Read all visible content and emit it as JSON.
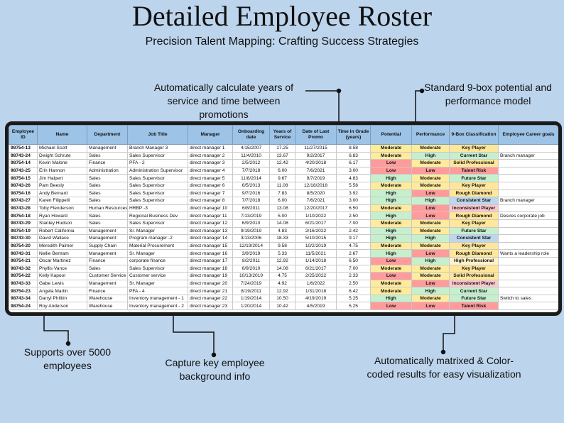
{
  "header": {
    "title": "Detailed Employee Roster",
    "subtitle": "Precision Talent Mapping: Crafting Success Strategies"
  },
  "callouts": [
    "Automatically calculate years of service and time between promotions",
    "Standard 9-box potential and performance model",
    "Supports over 5000 employees",
    "Capture key employee background info",
    "Automatically matrixed & Color-coded results for easy visualization"
  ],
  "table": {
    "headers": [
      "Employee ID",
      "Name",
      "Department",
      "Job Title",
      "Manager",
      "Onboarding date",
      "Years of Service",
      "Date of Last Promo",
      "Time in Grade (years)",
      "Potential",
      "Performance",
      "9-Box Classification",
      "Employee Career goals"
    ],
    "rows": [
      [
        "98754-13",
        "Michael Scott",
        "Management",
        "Branch Manager 3",
        "direct manager 1",
        "4/15/2007",
        17.25,
        "11/27/2015",
        8.58,
        "Moderate",
        "Moderate",
        "Key Player",
        null
      ],
      [
        "98743-24",
        "Dwight Schrute",
        "Sales",
        "Sales Supervisor",
        "direct manager 2",
        "11/4/2010",
        13.67,
        "9/2/2017",
        6.83,
        "Moderate",
        "High",
        "Current Star",
        "Branch manager"
      ],
      [
        "98754-14",
        "Kevin Malone",
        "Finance",
        "PFA - 2",
        "direct manager 3",
        "2/5/2012",
        12.42,
        "4/20/2018",
        6.17,
        "Low",
        "Moderate",
        "Solid Professional",
        null
      ],
      [
        "98743-25",
        "Erin Hannon",
        "Administration",
        "Administration Supervisor",
        "direct manager 4",
        "7/7/2018",
        "6.00",
        "7/6/2021",
        "3.00",
        "Low",
        "Low",
        "Talent Risk",
        null
      ],
      [
        "98754-15",
        "Jim Halpert",
        "Sales",
        "Sales Supervisor",
        "direct manager 5",
        "11/8/2014",
        9.67,
        "9/7/2019",
        4.83,
        "High",
        "Moderate",
        "Future Star",
        null
      ],
      [
        "98743-26",
        "Pam Beesly",
        "Sales",
        "Sales Supervisor",
        "direct manager 6",
        "6/5/2013",
        11.08,
        "12/18/2018",
        5.58,
        "Moderate",
        "Moderate",
        "Key Player",
        null
      ],
      [
        "98754-16",
        "Andy Bernard",
        "Sales",
        "Sales Supervisor",
        "direct manager 7",
        "9/7/2016",
        7.83,
        "8/5/2020",
        3.92,
        "High",
        "Low",
        "Rough Diamond",
        null
      ],
      [
        "98743-27",
        "Karen Filippelli",
        "Sales",
        "Sales Supervisor",
        "direct manager 8",
        "7/7/2018",
        "6.00",
        "7/6/2021",
        "3.00",
        "High",
        "High",
        "Consistent Star",
        "Branch manager"
      ],
      [
        "98743-28",
        "Toby Flenderson",
        "Human Resources",
        "HRBP -3",
        "direct manager 10",
        "6/8/2011",
        13.08,
        "12/20/2017",
        "6.50",
        "Moderate",
        "Low",
        "Inconsistent Player",
        null
      ],
      [
        "98754-18",
        "Ryan Howard",
        "Sales",
        "Regional Business Dev",
        "direct manager 11",
        "7/13/2019",
        "5.00",
        "1/10/2022",
        "2.50",
        "High",
        "Low",
        "Rough Diamond",
        "Desires corporate job"
      ],
      [
        "98743-29",
        "Stanley Hudson",
        "Sales",
        "Sales Supervisor",
        "direct manager 12",
        "6/9/2010",
        14.08,
        "6/21/2017",
        "7.00",
        "Moderate",
        "Moderate",
        "Key Player",
        null
      ],
      [
        "98754-19",
        "Robert California",
        "Management",
        "Sr. Manager",
        "direct manager 13",
        "9/19/2019",
        4.83,
        "2/16/2022",
        2.42,
        "High",
        "Moderate",
        "Future Star",
        null
      ],
      [
        "98743-30",
        "David Wallace",
        "Management",
        "Program manager -2",
        "direct manager 14",
        "3/13/2006",
        18.33,
        "5/10/2015",
        9.17,
        "High",
        "High",
        "Consistent Star",
        null
      ],
      [
        "98754-20",
        "Meredith Palmer",
        "Supply Chain",
        "Material Procurement",
        "direct manager 15",
        "12/19/2014",
        9.58,
        "10/2/2019",
        4.75,
        "Moderate",
        "Moderate",
        "Key Player",
        null
      ],
      [
        "98743-31",
        "Nellie Bertram",
        "Management",
        "Sr. Manager",
        "direct manager 16",
        "3/9/2019",
        5.33,
        "11/5/2021",
        2.67,
        "High",
        "Low",
        "Rough Diamond",
        "Wants a leadership role"
      ],
      [
        "98754-21",
        "Oscar Martinez",
        "Finance",
        "corporate finance",
        "direct manager 17",
        "8/2/2011",
        12.92,
        "1/14/2018",
        "6.50",
        "Low",
        "High",
        "High Professional",
        null
      ],
      [
        "98743-32",
        "Phyllis Vance",
        "Sales",
        "Sales Supervisor",
        "direct manager 18",
        "6/9/2010",
        14.08,
        "6/21/2017",
        "7.00",
        "Moderate",
        "Moderate",
        "Key Player",
        null
      ],
      [
        "98754-22",
        "Kelly Kapoor",
        "Customer Service",
        "Customer service",
        "direct manager 19",
        "10/13/2019",
        4.75,
        "2/25/2022",
        2.33,
        "Low",
        "Moderate",
        "Solid Professional",
        null
      ],
      [
        "98743-33",
        "Gabe Lewis",
        "Management",
        "Sr. Manager",
        "direct manager 20",
        "7/24/2019",
        4.92,
        "1/6/2022",
        "2.50",
        "Moderate",
        "Low",
        "Inconsistent Player",
        null
      ],
      [
        "98754-23",
        "Angela Martin",
        "Finance",
        "PFA - 4",
        "direct manager 21",
        "8/19/2011",
        12.92,
        "1/31/2018",
        6.42,
        "Moderate",
        "High",
        "Current Star",
        null
      ],
      [
        "98743-34",
        "Darryl Philbin",
        "Warehouse",
        "Inventory management - 1",
        "direct manager 22",
        "1/19/2014",
        "10.50",
        "4/19/2019",
        5.25,
        "High",
        "Moderate",
        "Future Star",
        "Switch to sales"
      ],
      [
        "98754-24",
        "Roy Anderson",
        "Warehouse",
        "Inventory management - 2",
        "direct manager 23",
        "1/20/2014",
        10.42,
        "4/5/2019",
        5.25,
        "Low",
        "Low",
        "Talent Risk",
        null
      ]
    ],
    "level_colors": {
      "High": "#c6efce",
      "Moderate": "#ffeb9c",
      "Low": "#ff9b9b"
    },
    "box_colors": {
      "Key Player": "#ffe699",
      "Current Star": "#c6efce",
      "Solid Professional": "#ffe699",
      "Talent Risk": "#ff9b9b",
      "Future Star": "#c6efce",
      "Rough Diamond": "#ffe699",
      "Consistent Star": "#bdd7ee",
      "Inconsistent Player": "#ffc7ce",
      "High Professional": "#fff2cc"
    }
  }
}
